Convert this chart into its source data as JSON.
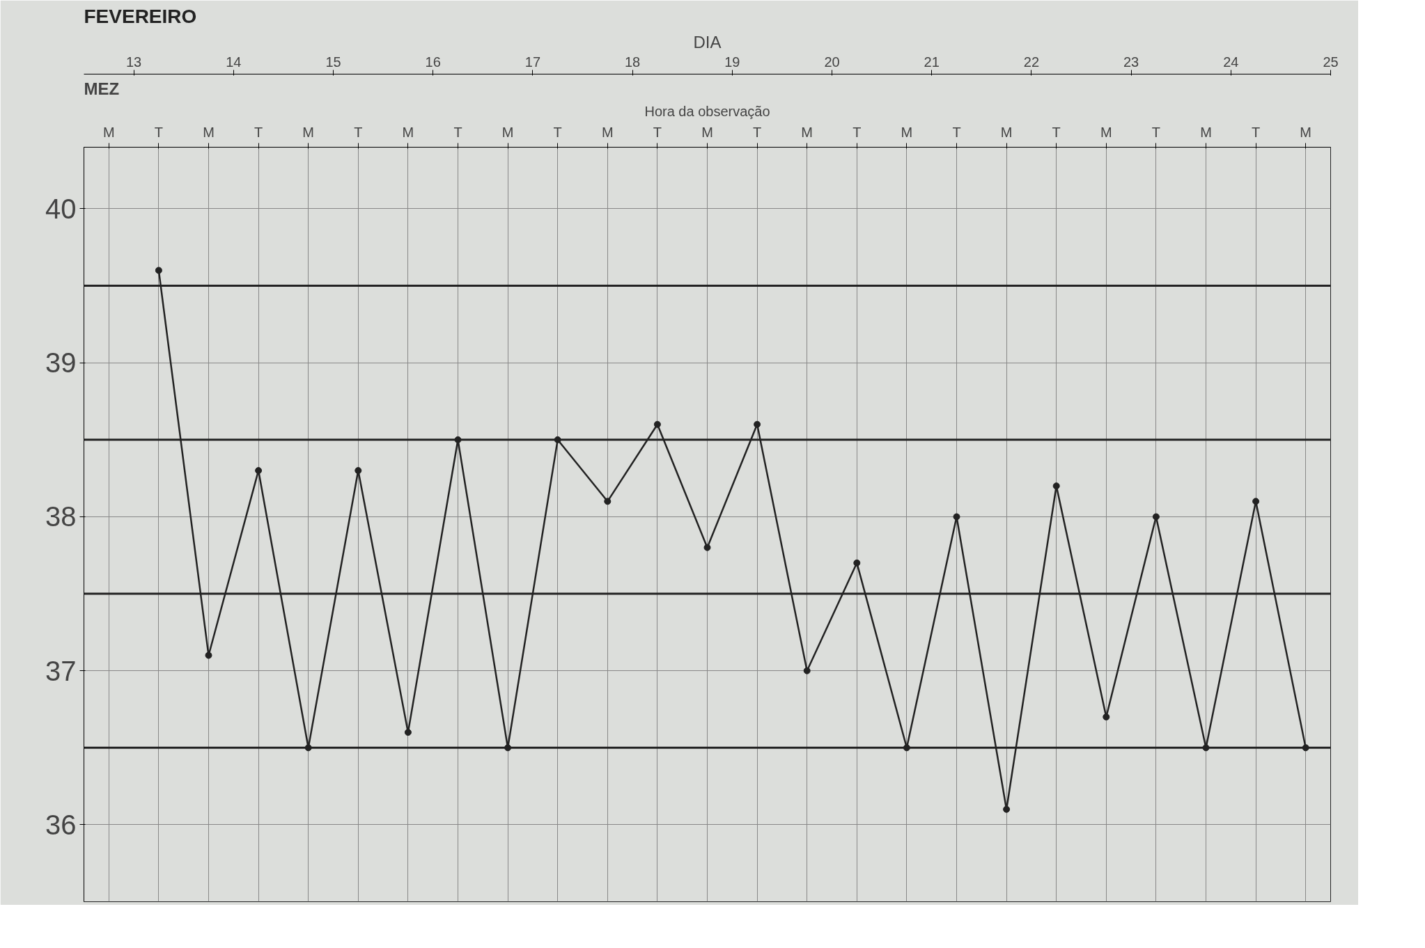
{
  "chart_data": {
    "type": "line",
    "title": "FEVEREIRO",
    "annotations": [
      "MEZ"
    ],
    "xlabel": "Hora da observação",
    "x2label": "DIA",
    "categories": [
      "M",
      "T",
      "M",
      "T",
      "M",
      "T",
      "M",
      "T",
      "M",
      "T",
      "M",
      "T",
      "M",
      "T",
      "M",
      "T",
      "M",
      "T",
      "M",
      "T",
      "M",
      "T",
      "M",
      "T",
      "M"
    ],
    "series": [
      {
        "color": "#222222",
        "values": [
          null,
          39.6,
          37.1,
          38.3,
          36.5,
          38.3,
          36.6,
          38.5,
          36.5,
          38.5,
          38.1,
          38.6,
          37.8,
          38.6,
          37.0,
          37.7,
          36.5,
          38.0,
          36.1,
          38.2,
          36.7,
          38.0,
          36.5,
          38.1,
          36.5
        ]
      }
    ],
    "x2lim": [
      12.5,
      25.0
    ],
    "x2ticks": [
      13,
      14,
      15,
      16,
      17,
      18,
      19,
      20,
      21,
      22,
      23,
      24,
      25
    ],
    "ylim": [
      35.5,
      40.4
    ],
    "yticks": [
      36,
      37,
      38,
      39,
      40
    ],
    "ref_lines": [
      {
        "axis": "y",
        "value": 36.5,
        "color": "#222222"
      },
      {
        "axis": "y",
        "value": 37.5,
        "color": "#222222"
      },
      {
        "axis": "y",
        "value": 38.5,
        "color": "#222222"
      },
      {
        "axis": "y",
        "value": 39.5,
        "color": "#222222"
      }
    ],
    "grid": true,
    "marker": "circle",
    "line_style": "solid"
  }
}
